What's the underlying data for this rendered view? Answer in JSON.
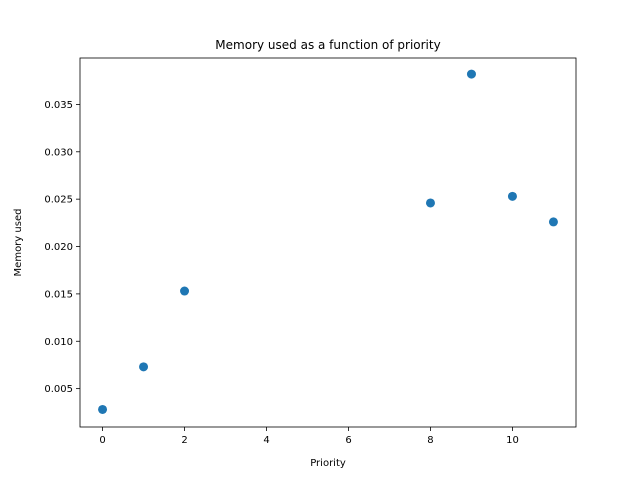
{
  "chart_data": {
    "type": "scatter",
    "title": "Memory used as a function of priority",
    "xlabel": "Priority",
    "ylabel": "Memory used",
    "xlim": [
      -0.55,
      11.55
    ],
    "ylim": [
      0.00095,
      0.0399
    ],
    "xticks": [
      0,
      2,
      4,
      6,
      8,
      10
    ],
    "xtick_labels": [
      "0",
      "2",
      "4",
      "6",
      "8",
      "10"
    ],
    "yticks": [
      0.005,
      0.01,
      0.015,
      0.02,
      0.025,
      0.03,
      0.035
    ],
    "ytick_labels": [
      "0.005",
      "0.010",
      "0.015",
      "0.020",
      "0.025",
      "0.030",
      "0.035"
    ],
    "grid": false,
    "marker_color": "#1f77b4",
    "points": [
      {
        "x": 0,
        "y": 0.0028
      },
      {
        "x": 1,
        "y": 0.0073
      },
      {
        "x": 2,
        "y": 0.0153
      },
      {
        "x": 8,
        "y": 0.0246
      },
      {
        "x": 9,
        "y": 0.0382
      },
      {
        "x": 10,
        "y": 0.0253
      },
      {
        "x": 11,
        "y": 0.0226
      }
    ]
  }
}
